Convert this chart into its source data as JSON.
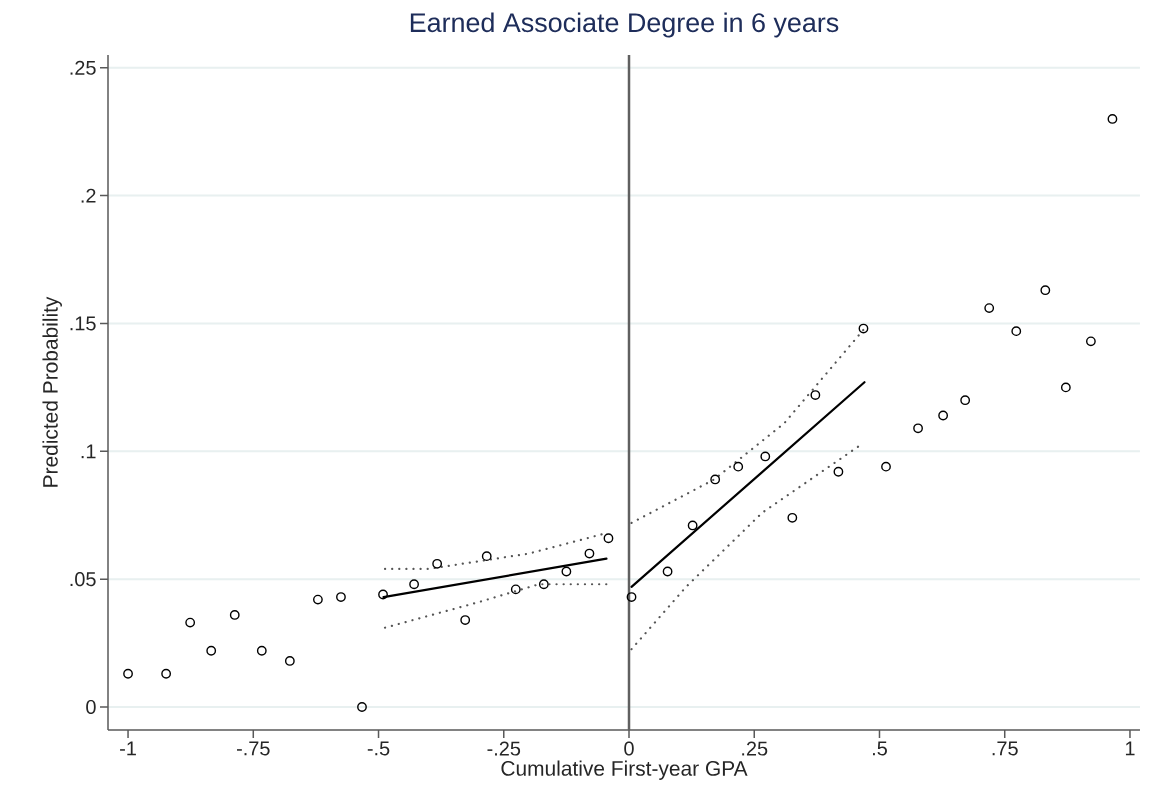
{
  "chart_data": {
    "type": "scatter",
    "title": "Earned Associate Degree in 6 years",
    "xlabel": "Cumulative First-year GPA",
    "ylabel": "Predicted Probability",
    "xlim": [
      -1.04,
      1.02
    ],
    "ylim": [
      -0.009,
      0.255
    ],
    "xticks": [
      -1,
      {
        "value": -0.75,
        "label": "-.75"
      },
      {
        "value": -0.5,
        "label": "-.5"
      },
      {
        "value": -0.25,
        "label": "-.25"
      },
      0,
      {
        "value": 0.25,
        "label": ".25"
      },
      {
        "value": 0.5,
        "label": ".5"
      },
      {
        "value": 0.75,
        "label": ".75"
      },
      1
    ],
    "yticks": [
      0,
      {
        "value": 0.05,
        "label": ".05"
      },
      {
        "value": 0.1,
        "label": ".1"
      },
      {
        "value": 0.15,
        "label": ".15"
      },
      {
        "value": 0.2,
        "label": ".2"
      },
      {
        "value": 0.25,
        "label": ".25"
      }
    ],
    "grid": "y",
    "ref_lines": [
      {
        "axis": "x",
        "value": 0,
        "color": "#606060"
      }
    ],
    "series": [
      {
        "marker": "circle",
        "color": "#000000",
        "x": [
          -1,
          -0.924,
          -0.876,
          -0.834,
          -0.787,
          -0.733,
          -0.677,
          -0.621,
          -0.575,
          -0.533,
          -0.491,
          -0.429,
          -0.383,
          -0.327,
          -0.284,
          -0.226,
          -0.17,
          -0.125,
          -0.079,
          -0.041,
          0.005,
          0.077,
          0.127,
          0.172,
          0.218,
          0.272,
          0.326,
          0.372,
          0.418,
          0.468,
          0.513,
          0.577,
          0.627,
          0.671,
          0.719,
          0.773,
          0.831,
          0.872,
          0.922,
          0.965
        ],
        "values": [
          0.013,
          0.013,
          0.033,
          0.022,
          0.036,
          0.022,
          0.018,
          0.042,
          0.043,
          0.0,
          0.044,
          0.048,
          0.056,
          0.034,
          0.059,
          0.046,
          0.048,
          0.053,
          0.06,
          0.066,
          0.043,
          0.053,
          0.071,
          0.089,
          0.094,
          0.098,
          0.074,
          0.122,
          0.092,
          0.148,
          0.094,
          0.109,
          0.114,
          0.12,
          0.156,
          0.147,
          0.163,
          0.125,
          0.143,
          0.23
        ]
      },
      {
        "type": "line",
        "line_style": "solid",
        "color": "#000000",
        "x": [
          -0.49,
          -0.045
        ],
        "values": [
          0.043,
          0.058
        ]
      },
      {
        "type": "line",
        "line_style": "dotted",
        "color": "#555555",
        "x": [
          -0.487,
          -0.4,
          -0.2,
          -0.045
        ],
        "values": [
          0.054,
          0.054,
          0.06,
          0.068
        ]
      },
      {
        "type": "line",
        "line_style": "dotted",
        "color": "#555555",
        "x": [
          -0.487,
          -0.3,
          -0.18,
          -0.045
        ],
        "values": [
          0.031,
          0.041,
          0.048,
          0.048
        ]
      },
      {
        "type": "line",
        "line_style": "solid",
        "color": "#000000",
        "x": [
          0.005,
          0.47
        ],
        "values": [
          0.047,
          0.127
        ]
      },
      {
        "type": "line",
        "line_style": "dotted",
        "color": "#555555",
        "x": [
          0.005,
          0.17,
          0.31,
          0.47
        ],
        "values": [
          0.072,
          0.089,
          0.111,
          0.148
        ]
      },
      {
        "type": "line",
        "line_style": "dotted",
        "color": "#555555",
        "x": [
          0.005,
          0.114,
          0.266,
          0.466
        ],
        "values": [
          0.0226,
          0.047,
          0.076,
          0.103
        ]
      }
    ]
  }
}
